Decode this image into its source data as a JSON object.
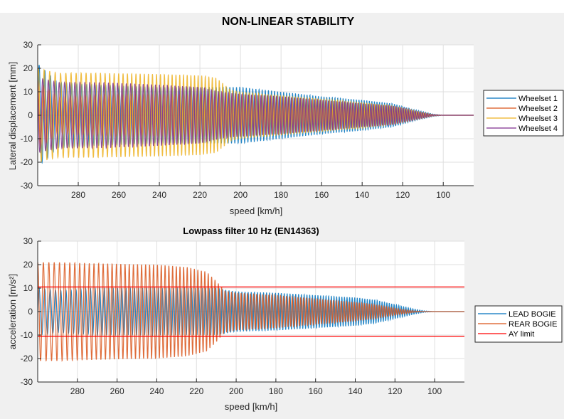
{
  "figure": {
    "title": "NON-LINEAR STABILITY"
  },
  "chart_data": [
    {
      "type": "line",
      "title": "",
      "xlabel": "speed [km/h]",
      "ylabel": "Lateral displacement [mm]",
      "xlim": [
        300,
        85
      ],
      "x_reversed": true,
      "ylim": [
        -30,
        30
      ],
      "xticks": [
        280,
        260,
        240,
        220,
        200,
        180,
        160,
        140,
        120,
        100
      ],
      "yticks": [
        30,
        20,
        10,
        0,
        -10,
        -20,
        -30
      ],
      "grid": true,
      "legend_placement": "outside-right",
      "oscillation_cycles_per_20kmh": 7,
      "series": [
        {
          "name": "Wheelset 1",
          "color": "#0072BD",
          "envelope": [
            [
              300,
              22
            ],
            [
              290,
              14
            ],
            [
              270,
              13
            ],
            [
              240,
              12
            ],
            [
              210,
              12
            ],
            [
              200,
              12
            ],
            [
              180,
              10
            ],
            [
              160,
              8
            ],
            [
              140,
              6.5
            ],
            [
              125,
              5
            ],
            [
              115,
              2.5
            ],
            [
              105,
              0.5
            ],
            [
              100,
              0
            ],
            [
              85,
              0
            ]
          ],
          "phase": 0.0
        },
        {
          "name": "Wheelset 2",
          "color": "#D95319",
          "envelope": [
            [
              300,
              15
            ],
            [
              290,
              8
            ],
            [
              270,
              9
            ],
            [
              240,
              9
            ],
            [
              210,
              9
            ],
            [
              200,
              9
            ],
            [
              180,
              8
            ],
            [
              160,
              6.5
            ],
            [
              140,
              5
            ],
            [
              125,
              4
            ],
            [
              115,
              2
            ],
            [
              105,
              0.3
            ],
            [
              100,
              0
            ],
            [
              85,
              0
            ]
          ],
          "phase": 1.6
        },
        {
          "name": "Wheelset 3",
          "color": "#EDB120",
          "envelope": [
            [
              300,
              20
            ],
            [
              290,
              18
            ],
            [
              270,
              18
            ],
            [
              240,
              17.5
            ],
            [
              220,
              17
            ],
            [
              212,
              16
            ],
            [
              205,
              11
            ],
            [
              200,
              10
            ],
            [
              180,
              8.5
            ],
            [
              160,
              7
            ],
            [
              140,
              5.5
            ],
            [
              125,
              4
            ],
            [
              115,
              2
            ],
            [
              105,
              0.3
            ],
            [
              100,
              0
            ],
            [
              85,
              0
            ]
          ],
          "phase": 0.8
        },
        {
          "name": "Wheelset 4",
          "color": "#7E2F8E",
          "envelope": [
            [
              300,
              16
            ],
            [
              290,
              14
            ],
            [
              270,
              14
            ],
            [
              240,
              13
            ],
            [
              220,
              12
            ],
            [
              210,
              10
            ],
            [
              200,
              9
            ],
            [
              180,
              8
            ],
            [
              160,
              6.5
            ],
            [
              140,
              5
            ],
            [
              125,
              4
            ],
            [
              115,
              2
            ],
            [
              105,
              0.3
            ],
            [
              100,
              0
            ],
            [
              85,
              0
            ]
          ],
          "phase": 2.4
        }
      ]
    },
    {
      "type": "line",
      "title": "Lowpass filter 10 Hz (EN14363)",
      "xlabel": "speed [km/h]",
      "ylabel": "acceleration [m/s²]",
      "xlim": [
        300,
        85
      ],
      "x_reversed": true,
      "ylim": [
        -30,
        30
      ],
      "xticks": [
        280,
        260,
        240,
        220,
        200,
        180,
        160,
        140,
        120,
        100
      ],
      "yticks": [
        30,
        20,
        10,
        0,
        -10,
        -20,
        -30
      ],
      "grid": true,
      "legend_placement": "outside-right",
      "oscillation_cycles_per_20kmh": 7,
      "series": [
        {
          "name": "LEAD BOGIE",
          "color": "#0072BD",
          "envelope": [
            [
              300,
              10
            ],
            [
              290,
              9
            ],
            [
              270,
              10
            ],
            [
              240,
              10
            ],
            [
              220,
              10
            ],
            [
              210,
              10
            ],
            [
              200,
              8.5
            ],
            [
              180,
              8
            ],
            [
              160,
              7
            ],
            [
              140,
              6
            ],
            [
              130,
              5
            ],
            [
              120,
              3
            ],
            [
              110,
              1
            ],
            [
              105,
              0.3
            ],
            [
              100,
              0
            ],
            [
              85,
              0
            ]
          ],
          "phase": 0.0
        },
        {
          "name": "REAR BOGIE",
          "color": "#D95319",
          "envelope": [
            [
              300,
              21
            ],
            [
              290,
              21
            ],
            [
              270,
              20.5
            ],
            [
              240,
              20
            ],
            [
              225,
              19
            ],
            [
              215,
              17
            ],
            [
              210,
              13
            ],
            [
              206,
              9
            ],
            [
              200,
              8
            ],
            [
              180,
              7
            ],
            [
              160,
              5.5
            ],
            [
              140,
              4
            ],
            [
              130,
              3
            ],
            [
              120,
              1.5
            ],
            [
              110,
              0.3
            ],
            [
              105,
              0
            ],
            [
              85,
              0
            ]
          ],
          "phase": 1.5
        },
        {
          "name": "AY limit",
          "color": "#FF0000",
          "constant_levels": [
            10.5,
            -10.5
          ]
        }
      ]
    }
  ]
}
